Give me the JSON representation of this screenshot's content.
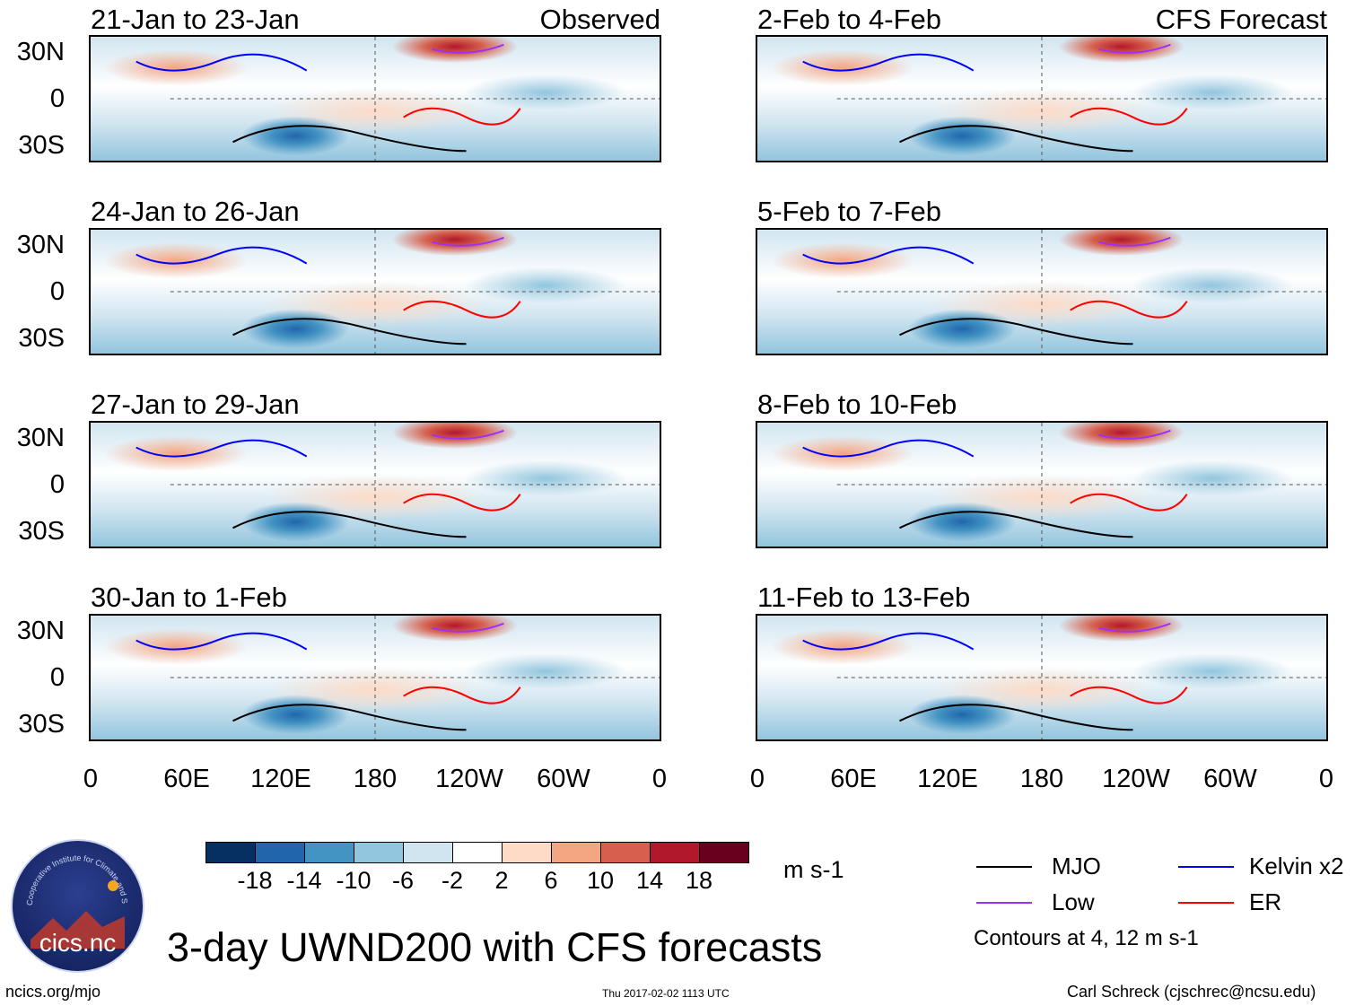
{
  "panels_left": [
    {
      "title": "21-Jan to 23-Jan",
      "tag": "Observed"
    },
    {
      "title": "24-Jan to 26-Jan",
      "tag": ""
    },
    {
      "title": "27-Jan to 29-Jan",
      "tag": ""
    },
    {
      "title": "30-Jan to 1-Feb",
      "tag": ""
    }
  ],
  "panels_right": [
    {
      "title": "2-Feb to 4-Feb",
      "tag": "CFS Forecast"
    },
    {
      "title": "5-Feb to 7-Feb",
      "tag": ""
    },
    {
      "title": "8-Feb to 10-Feb",
      "tag": ""
    },
    {
      "title": "11-Feb to 13-Feb",
      "tag": ""
    }
  ],
  "lat_labels": [
    "30N",
    "0",
    "30S"
  ],
  "lon_labels": [
    "0",
    "60E",
    "120E",
    "180",
    "120W",
    "60W",
    "0"
  ],
  "colorbar": {
    "colors": [
      "#053061",
      "#2166ac",
      "#4393c3",
      "#92c5de",
      "#d1e5f0",
      "#ffffff",
      "#fddbc7",
      "#f4a582",
      "#d6604d",
      "#b2182b",
      "#67001f"
    ],
    "ticks": [
      "-18",
      "-14",
      "-10",
      "-6",
      "-2",
      "2",
      "6",
      "10",
      "14",
      "18"
    ],
    "units": "m s-1"
  },
  "legend": {
    "mjo": "MJO",
    "mjo_color": "#000000",
    "low": "Low",
    "low_color": "#9b30ff",
    "kelvin": "Kelvin x2",
    "kelvin_color": "#0000ff",
    "er": "ER",
    "er_color": "#ff0000",
    "contours_note": "Contours at 4, 12 m s-1"
  },
  "logo_text": "cics.nc",
  "logo_ring_text": "Cooperative Institute for Climate and Satellites",
  "main_title": "3-day UWND200 with CFS forecasts",
  "footer": {
    "url": "ncics.org/mjo",
    "timestamp": "Thu 2017-02-02 1113 UTC",
    "credit": "Carl Schreck (cjschrec@ncsu.edu)"
  }
}
